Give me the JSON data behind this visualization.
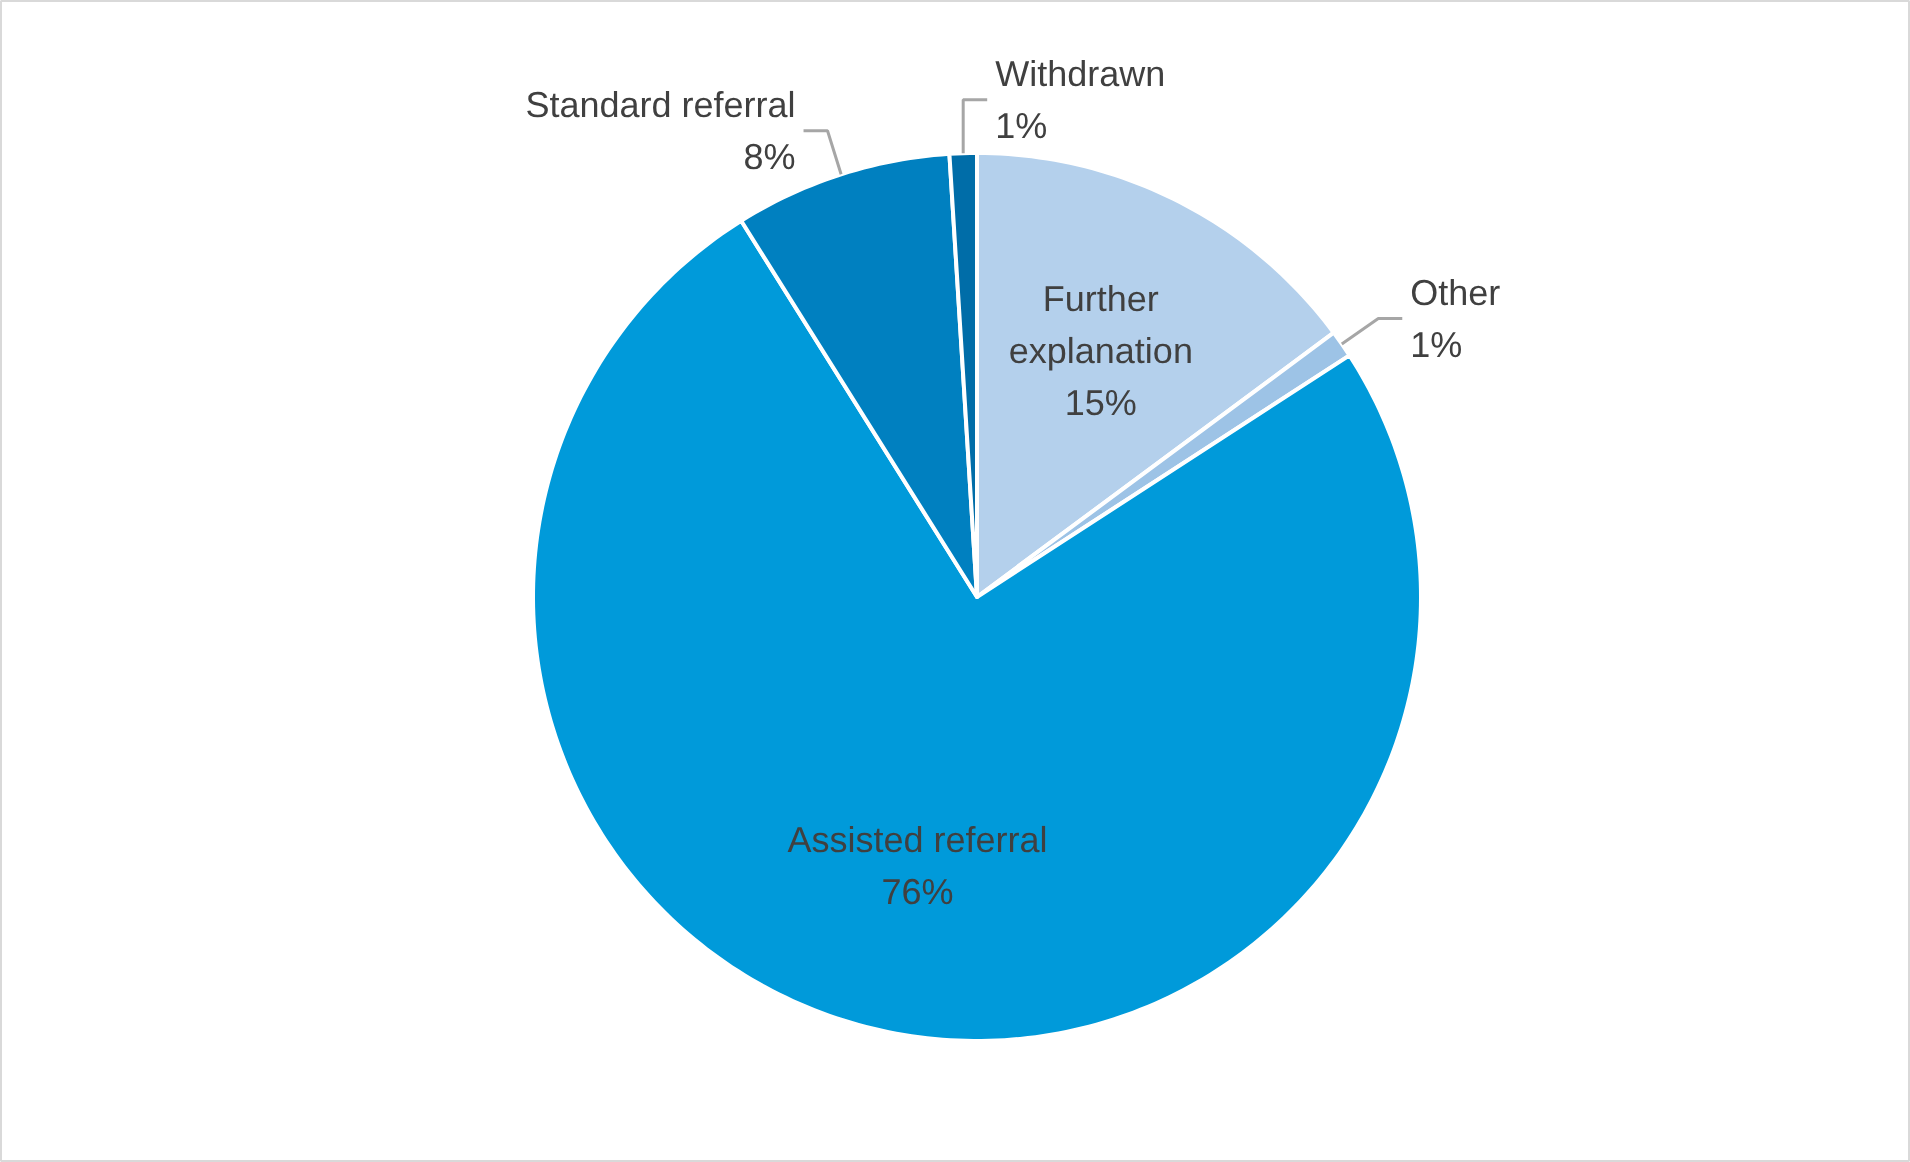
{
  "chart_data": {
    "type": "pie",
    "categories": [
      "Further explanation",
      "Other",
      "Assisted referral",
      "Standard referral",
      "Withdrawn"
    ],
    "values": [
      15,
      1,
      76,
      8,
      1
    ],
    "colors": [
      "#b4d0ec",
      "#9dc3e6",
      "#009ada",
      "#0080c0",
      "#006da8"
    ],
    "value_labels": [
      "15%",
      "1%",
      "76%",
      "8%",
      "1%"
    ]
  }
}
